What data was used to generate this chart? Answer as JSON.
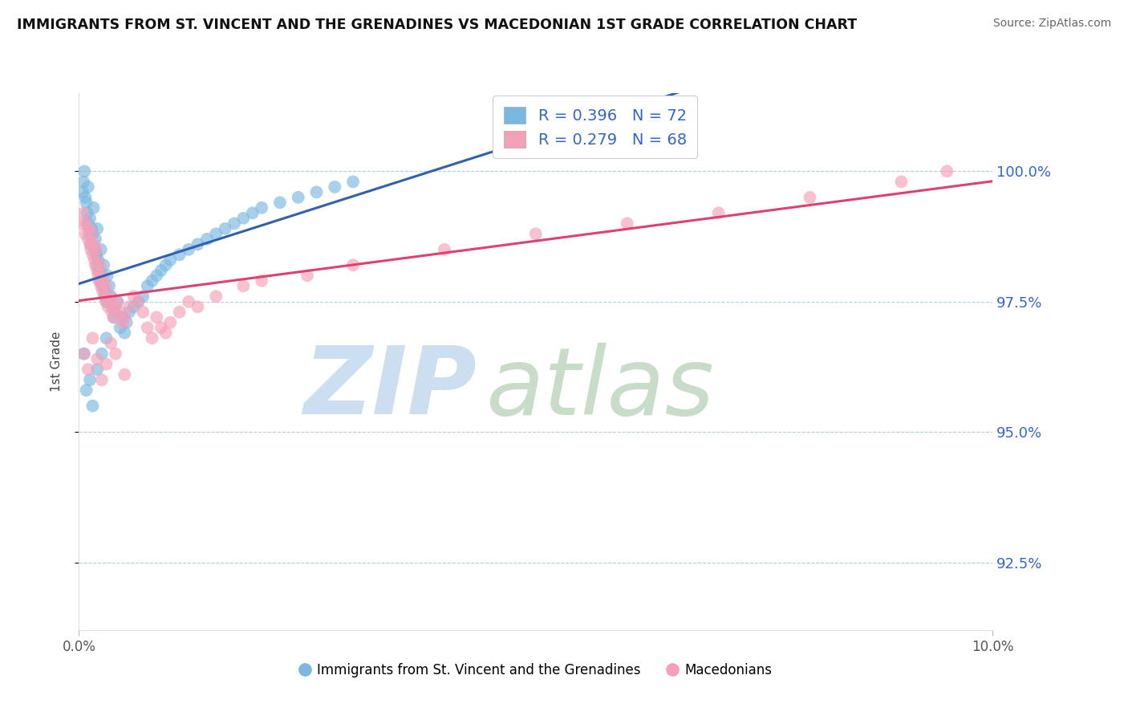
{
  "title": "IMMIGRANTS FROM ST. VINCENT AND THE GRENADINES VS MACEDONIAN 1ST GRADE CORRELATION CHART",
  "source": "Source: ZipAtlas.com",
  "ylabel": "1st Grade",
  "ytick_values": [
    92.5,
    95.0,
    97.5,
    100.0
  ],
  "xlim": [
    0.0,
    10.0
  ],
  "ylim": [
    91.2,
    101.5
  ],
  "blue_label": "Immigrants from St. Vincent and the Grenadines",
  "pink_label": "Macedonians",
  "blue_R": 0.396,
  "blue_N": 72,
  "pink_R": 0.279,
  "pink_N": 68,
  "blue_color": "#7ab8e0",
  "pink_color": "#f4a0b8",
  "blue_line_color": "#3060b0",
  "pink_line_color": "#e04070",
  "legend_text_color": "#3366cc",
  "blue_x": [
    0.04,
    0.05,
    0.06,
    0.07,
    0.08,
    0.09,
    0.1,
    0.1,
    0.11,
    0.12,
    0.13,
    0.14,
    0.15,
    0.16,
    0.17,
    0.18,
    0.19,
    0.2,
    0.2,
    0.21,
    0.22,
    0.23,
    0.24,
    0.25,
    0.26,
    0.27,
    0.28,
    0.29,
    0.3,
    0.31,
    0.33,
    0.35,
    0.37,
    0.38,
    0.4,
    0.42,
    0.45,
    0.48,
    0.5,
    0.52,
    0.55,
    0.6,
    0.65,
    0.7,
    0.75,
    0.8,
    0.85,
    0.9,
    0.95,
    1.0,
    1.1,
    1.2,
    1.3,
    1.4,
    1.5,
    1.6,
    1.7,
    1.8,
    1.9,
    2.0,
    2.2,
    2.4,
    2.6,
    2.8,
    3.0,
    0.05,
    0.08,
    0.12,
    0.15,
    0.2,
    0.25,
    0.3
  ],
  "blue_y": [
    99.6,
    99.8,
    100.0,
    99.5,
    99.4,
    99.2,
    99.0,
    99.7,
    98.8,
    99.1,
    98.6,
    98.9,
    98.8,
    99.3,
    98.5,
    98.7,
    98.4,
    98.2,
    98.9,
    98.3,
    98.1,
    97.9,
    98.5,
    98.0,
    97.8,
    98.2,
    97.7,
    97.6,
    97.5,
    98.0,
    97.8,
    97.6,
    97.4,
    97.2,
    97.3,
    97.5,
    97.0,
    97.2,
    96.9,
    97.1,
    97.3,
    97.4,
    97.5,
    97.6,
    97.8,
    97.9,
    98.0,
    98.1,
    98.2,
    98.3,
    98.4,
    98.5,
    98.6,
    98.7,
    98.8,
    98.9,
    99.0,
    99.1,
    99.2,
    99.3,
    99.4,
    99.5,
    99.6,
    99.7,
    99.8,
    96.5,
    95.8,
    96.0,
    95.5,
    96.2,
    96.5,
    96.8
  ],
  "pink_x": [
    0.03,
    0.05,
    0.07,
    0.08,
    0.1,
    0.11,
    0.12,
    0.13,
    0.14,
    0.15,
    0.16,
    0.17,
    0.18,
    0.19,
    0.2,
    0.21,
    0.22,
    0.23,
    0.24,
    0.25,
    0.26,
    0.27,
    0.28,
    0.29,
    0.3,
    0.32,
    0.34,
    0.36,
    0.38,
    0.4,
    0.42,
    0.45,
    0.48,
    0.5,
    0.55,
    0.6,
    0.65,
    0.7,
    0.75,
    0.8,
    0.85,
    0.9,
    0.95,
    1.0,
    1.1,
    1.2,
    1.3,
    1.5,
    1.8,
    2.0,
    2.5,
    3.0,
    4.0,
    5.0,
    6.0,
    7.0,
    8.0,
    9.0,
    9.5,
    0.06,
    0.1,
    0.15,
    0.2,
    0.25,
    0.3,
    0.35,
    0.4,
    0.5
  ],
  "pink_y": [
    99.0,
    99.2,
    98.8,
    99.0,
    98.7,
    98.9,
    98.6,
    98.5,
    98.8,
    98.4,
    98.6,
    98.3,
    98.2,
    98.5,
    98.1,
    98.0,
    97.9,
    98.2,
    97.8,
    98.0,
    97.7,
    97.9,
    97.6,
    97.8,
    97.5,
    97.4,
    97.6,
    97.3,
    97.2,
    97.4,
    97.5,
    97.3,
    97.1,
    97.2,
    97.4,
    97.6,
    97.5,
    97.3,
    97.0,
    96.8,
    97.2,
    97.0,
    96.9,
    97.1,
    97.3,
    97.5,
    97.4,
    97.6,
    97.8,
    97.9,
    98.0,
    98.2,
    98.5,
    98.8,
    99.0,
    99.2,
    99.5,
    99.8,
    100.0,
    96.5,
    96.2,
    96.8,
    96.4,
    96.0,
    96.3,
    96.7,
    96.5,
    96.1
  ]
}
